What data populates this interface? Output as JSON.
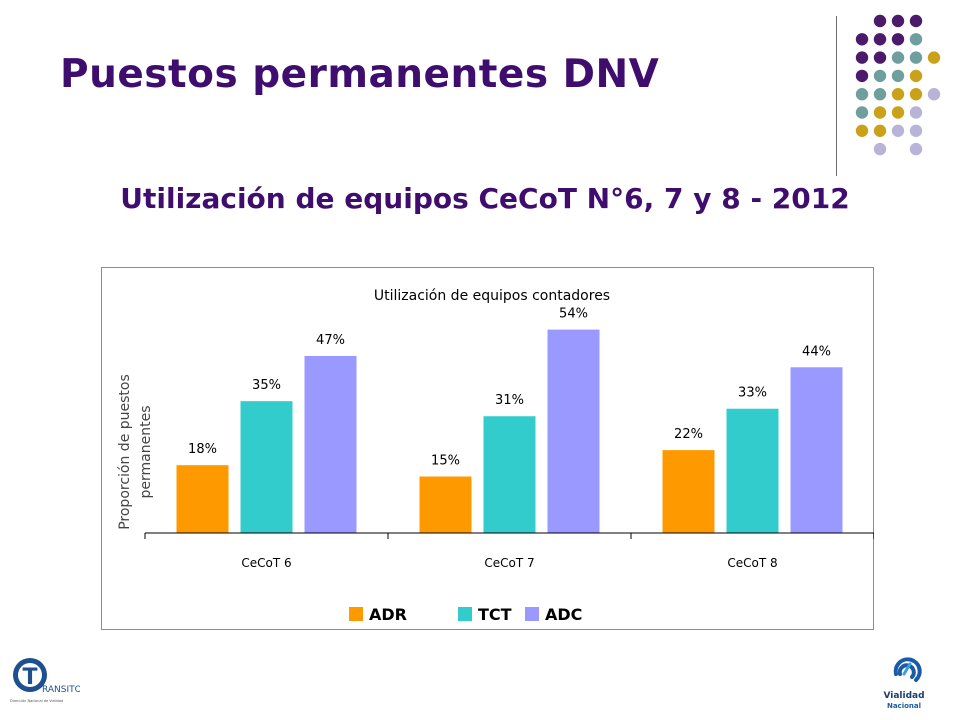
{
  "slide": {
    "title": "Puestos permanentes DNV",
    "subtitle": "Utilización de equipos CeCoT N°6, 7 y 8 - 2012"
  },
  "colors": {
    "title": "#3f0d6e",
    "adr": "#ff9900",
    "tct": "#33cccc",
    "adc": "#9999ff",
    "dot_purple": "#4b1a6b",
    "dot_teal": "#6f9e9e",
    "dot_gold": "#c9a21a",
    "dot_lavender": "#b7b4d8"
  },
  "chart_data": {
    "type": "bar",
    "title": "Utilización de equipos contadores",
    "ylabel": "Proporción de puestos permanentes",
    "xlabel": "",
    "categories": [
      "CeCoT 6",
      "CeCoT 7",
      "CeCoT 8"
    ],
    "series": [
      {
        "name": "ADR",
        "values": [
          18,
          15,
          22
        ],
        "labels": [
          "18%",
          "15%",
          "22%"
        ]
      },
      {
        "name": "TCT",
        "values": [
          35,
          31,
          33
        ],
        "labels": [
          "35%",
          "31%",
          "33%"
        ]
      },
      {
        "name": "ADC",
        "values": [
          47,
          54,
          44
        ],
        "labels": [
          "47%",
          "54%",
          "44%"
        ]
      }
    ],
    "ylim": [
      0,
      60
    ],
    "grid": false,
    "legend": "bottom"
  },
  "logos": {
    "left": {
      "mark": "T",
      "text": "RANSITO",
      "small": "Dirección Nacional de Vialidad"
    },
    "right": {
      "line1": "Vialidad",
      "line2": "Nacional"
    }
  }
}
